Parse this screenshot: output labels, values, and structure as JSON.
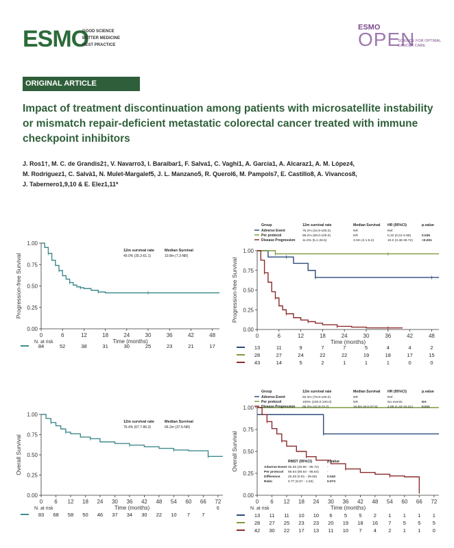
{
  "header": {
    "logo_text": "ESMO",
    "tagline": [
      "GOOD SCIENCE",
      "BETTER MEDICINE",
      "BEST PRACTICE"
    ],
    "journal_logo_top": "ESMO",
    "journal_logo_main": "OPEN",
    "journal_tagline": [
      "SCIENCE FOR OPTIMAL",
      "CANCER CARE"
    ]
  },
  "article": {
    "type": "ORIGINAL ARTICLE",
    "title": "Impact of treatment discontinuation among patients with microsatellite instability or mismatch repair-deficient metastatic colorectal cancer treated with immune checkpoint inhibitors",
    "authors_line1": "J. Ros1†, M. C. de Grandis2‡, V. Navarro3, I. Baraibar1, F. Salva1, C. Vaghi1, A. Garcia1, A. Alcaraz1, A. M. López4,",
    "authors_line2": "M. Rodriguez1, C. Salvà1, N. Mulet-Margalef5, J. L. Manzano5, R. Querol6, M. Pampols7, E. Castillo8, A. Vivancos8,",
    "authors_line3": "J. Tabernero1,9,10 & E. Elez1,11*"
  },
  "chart_data": [
    {
      "type": "line",
      "ylabel": "Progression-free Survival",
      "xlabel": "Time (months)",
      "x_ticks": [
        0,
        6,
        12,
        18,
        24,
        30,
        36,
        42,
        48
      ],
      "y_ticks": [
        "0.00",
        "0.25",
        "0.50",
        "0.75",
        "1.00"
      ],
      "xlim": [
        0,
        50
      ],
      "ylim": [
        0,
        1
      ],
      "stats_header": [
        "12m survival rate",
        "Median Survival"
      ],
      "stats_values": [
        "49.0% (35.3-61.1)",
        "10.8m (7.3-NR)"
      ],
      "risk_label": "N. at risk",
      "series": [
        {
          "color": "#3f8a8c",
          "risk": [
            "84",
            "52",
            "38",
            "31",
            "30",
            "25",
            "23",
            "21",
            "17"
          ],
          "x": [
            0,
            1,
            2,
            3,
            4,
            5,
            6,
            7,
            8,
            9,
            10,
            11,
            12,
            14,
            16,
            18,
            22,
            30,
            40,
            48,
            50
          ],
          "y": [
            1.0,
            0.95,
            0.88,
            0.8,
            0.74,
            0.68,
            0.62,
            0.58,
            0.54,
            0.51,
            0.49,
            0.48,
            0.47,
            0.45,
            0.43,
            0.42,
            0.42,
            0.42,
            0.42,
            0.42,
            0.42
          ]
        }
      ]
    },
    {
      "type": "line",
      "ylabel": "Progression-free Survival",
      "xlabel": "Time (months)",
      "x_ticks": [
        0,
        6,
        12,
        18,
        24,
        30,
        36,
        42,
        48
      ],
      "y_ticks": [
        "0.00",
        "0.25",
        "0.50",
        "0.75",
        "1.00"
      ],
      "xlim": [
        0,
        50
      ],
      "ylim": [
        0,
        1
      ],
      "legend_headers": [
        "Group",
        "12m survival rate",
        "Median Survival",
        "HR (95%CI)",
        "p.value"
      ],
      "legend_rows": [
        {
          "name": "Adverse Event",
          "rate": "75.2% (34.9-100.0)",
          "median": "NR",
          "hr": "Ref.",
          "p": ""
        },
        {
          "name": "Per protocol",
          "rate": "96.2% (89.0-100.0)",
          "median": "NR",
          "hr": "0.10 (0.01-0.86)",
          "p": "0.036"
        },
        {
          "name": "Disease Progression",
          "rate": "11.6% (5.1-26.5)",
          "median": "3.0m (2.1-6.2)",
          "hr": "10.0 (3.48-28.72)",
          "p": "<0.001"
        }
      ],
      "risk_label": "",
      "series": [
        {
          "name": "Adverse Event",
          "color": "#2b4a7a",
          "risk": [
            "13",
            "11",
            "9",
            "7",
            "7",
            "5",
            "4",
            "4",
            "2"
          ],
          "x": [
            0,
            3,
            8,
            10,
            14,
            16,
            24,
            36,
            48,
            50
          ],
          "y": [
            1.0,
            0.92,
            0.92,
            0.84,
            0.75,
            0.66,
            0.66,
            0.66,
            0.66,
            0.66
          ]
        },
        {
          "name": "Per protocol",
          "color": "#7a9a3a",
          "risk": [
            "28",
            "27",
            "24",
            "22",
            "22",
            "19",
            "18",
            "17",
            "15"
          ],
          "x": [
            0,
            4,
            5,
            12,
            24,
            36,
            48,
            50
          ],
          "y": [
            1.0,
            1.0,
            0.96,
            0.96,
            0.96,
            0.96,
            0.96,
            0.96
          ]
        },
        {
          "name": "Disease Progression",
          "color": "#8a2a2a",
          "risk": [
            "43",
            "14",
            "5",
            "2",
            "1",
            "1",
            "1",
            "0",
            "0"
          ],
          "x": [
            0,
            1,
            2,
            3,
            4,
            5,
            6,
            7,
            8,
            10,
            12,
            14,
            16,
            18,
            22,
            26,
            30,
            36,
            40
          ],
          "y": [
            1.0,
            0.88,
            0.72,
            0.6,
            0.48,
            0.4,
            0.3,
            0.25,
            0.2,
            0.15,
            0.12,
            0.1,
            0.08,
            0.06,
            0.04,
            0.03,
            0.02,
            0.02,
            0.02
          ]
        }
      ]
    },
    {
      "type": "line",
      "ylabel": "Overall Survival",
      "xlabel": "Time (months)",
      "x_ticks": [
        0,
        6,
        12,
        18,
        24,
        30,
        36,
        42,
        48,
        54,
        60,
        66,
        72
      ],
      "y_ticks": [
        "0.00",
        "0.25",
        "0.50",
        "0.75",
        "1.00"
      ],
      "xlim": [
        0,
        74
      ],
      "ylim": [
        0,
        1
      ],
      "stats_header": [
        "12m survival rate",
        "Median Survival"
      ],
      "stats_values": [
        "76.4% (67.7-86.3)",
        "66.2m (37.5-NR)"
      ],
      "risk_label": "N. at risk",
      "extra_label": "6",
      "series": [
        {
          "color": "#3f8a8c",
          "risk": [
            "83",
            "68",
            "58",
            "50",
            "46",
            "37",
            "34",
            "30",
            "22",
            "10",
            "7",
            "7",
            ""
          ],
          "x": [
            0,
            2,
            4,
            6,
            8,
            10,
            12,
            16,
            20,
            24,
            30,
            36,
            42,
            48,
            54,
            60,
            66,
            68,
            74
          ],
          "y": [
            1.0,
            0.95,
            0.9,
            0.86,
            0.82,
            0.78,
            0.76,
            0.72,
            0.7,
            0.66,
            0.64,
            0.62,
            0.6,
            0.58,
            0.56,
            0.55,
            0.55,
            0.48,
            0.48
          ]
        }
      ]
    },
    {
      "type": "line",
      "ylabel": "Overall Survival",
      "xlabel": "Time (months)",
      "x_ticks": [
        0,
        6,
        12,
        18,
        24,
        30,
        36,
        42,
        48,
        54,
        60,
        66,
        72
      ],
      "y_ticks": [
        "0.00",
        "0.25",
        "0.50",
        "0.75",
        "1.00"
      ],
      "xlim": [
        0,
        74
      ],
      "ylim": [
        0,
        1
      ],
      "legend_headers": [
        "Group",
        "12m survival rate",
        "Median Survival",
        "HR (95%CI)",
        "p.value"
      ],
      "legend_rows": [
        {
          "name": "Adverse Event",
          "rate": "92.3% (78.9-100.0)",
          "median": "NR",
          "hr": "Ref.",
          "p": ""
        },
        {
          "name": "Per protocol",
          "rate": "100% (100.0-100.0)",
          "median": "NR",
          "hr": "No events",
          "p": "NA"
        },
        {
          "name": "Disease Progression",
          "rate": "56.2% (42.8-73.7)",
          "median": "16.8m (9.0-37.5)",
          "hr": "4.68 (1.42-15.41)",
          "p": "0.011"
        }
      ],
      "rmst": {
        "headers": [
          "RMST (95%CI)",
          "p.value"
        ],
        "rows": [
          {
            "label": "Adverse Event",
            "value": "66.36 (46.90 - 85.72)",
            "p": "-"
          },
          {
            "label": "Per protocol",
            "value": "86.64 (86.64 - 86.64)",
            "p": "-"
          },
          {
            "label": "Difference",
            "value": "20.28 (0.91 - 39.65)",
            "p": "0.040"
          },
          {
            "label": "Ratio",
            "value": "0.77 (0.57 - 1.03)",
            "p": "0.073"
          }
        ]
      },
      "risk_label": "N. at risk",
      "series": [
        {
          "name": "Adverse Event",
          "color": "#2b4a7a",
          "risk": [
            "13",
            "11",
            "11",
            "10",
            "10",
            "6",
            "5",
            "5",
            "2",
            "1",
            "1",
            "1",
            "1"
          ],
          "x": [
            0,
            26,
            27,
            40,
            60,
            74
          ],
          "y": [
            0.92,
            0.92,
            0.7,
            0.7,
            0.7,
            0.7
          ]
        },
        {
          "name": "Per protocol",
          "color": "#7a9a3a",
          "risk": [
            "28",
            "27",
            "25",
            "23",
            "23",
            "20",
            "19",
            "18",
            "16",
            "7",
            "5",
            "5",
            "5"
          ],
          "x": [
            0,
            74
          ],
          "y": [
            1.0,
            1.0
          ]
        },
        {
          "name": "Disease Progression",
          "color": "#8a2a2a",
          "risk": [
            "42",
            "30",
            "22",
            "17",
            "13",
            "11",
            "10",
            "7",
            "4",
            "2",
            "1",
            "1",
            "0"
          ],
          "x": [
            0,
            2,
            4,
            6,
            8,
            10,
            12,
            16,
            20,
            24,
            30,
            36,
            42,
            48,
            54,
            60,
            64,
            66
          ],
          "y": [
            1.0,
            0.92,
            0.84,
            0.76,
            0.7,
            0.62,
            0.56,
            0.5,
            0.44,
            0.4,
            0.36,
            0.3,
            0.26,
            0.24,
            0.22,
            0.21,
            0.21,
            0.02
          ]
        }
      ]
    }
  ]
}
